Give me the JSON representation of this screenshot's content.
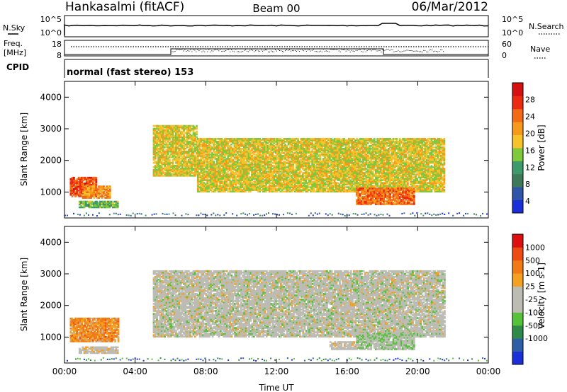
{
  "header": {
    "station": "Hankasalmi (fitACF)",
    "beam": "Beam 00",
    "date": "06/Mar/2012"
  },
  "top_panels": {
    "nsky_label": "N.Sky",
    "nsky_ticks": [
      "10^5",
      "10^0"
    ],
    "nsearch_label": "N.Search",
    "nsearch_ticks": [
      "10^5",
      "10^0"
    ],
    "freq_label_1": "Freq.",
    "freq_label_2": "[MHz]",
    "freq_ticks": [
      "18",
      "8"
    ],
    "nave_label": "Nave",
    "nave_ticks": [
      "60",
      "0"
    ],
    "cpid_label": "CPID",
    "cpid_text": "normal (fast stereo) 153"
  },
  "axes": {
    "ylabel": "Slant Range [km]",
    "yticks": [
      "1000",
      "2000",
      "3000",
      "4000"
    ],
    "xlabel": "Time UT",
    "xticks": [
      "00:00",
      "04:00",
      "08:00",
      "12:00",
      "16:00",
      "20:00",
      "00:00"
    ]
  },
  "colorbars": {
    "power": {
      "label": "Power [dB]",
      "ticks": [
        "4",
        "8",
        "12",
        "16",
        "20",
        "24",
        "28"
      ],
      "colors": [
        "#1a2fd8",
        "#2e55a8",
        "#3e7a5a",
        "#3e9a6a",
        "#7ec93c",
        "#f6c42a",
        "#f59a1c",
        "#f26a16",
        "#ec2a12",
        "#d41010"
      ]
    },
    "velocity": {
      "label": "Velocity [m s-1]",
      "ticks": [
        "1000",
        "500",
        "100",
        "25",
        "-25",
        "-100",
        "-500",
        "-1000"
      ],
      "colors": [
        "#1a2fd8",
        "#2e5fa6",
        "#2f8a4a",
        "#55c23a",
        "#bcbcb4",
        "#bcbcb4",
        "#f4a020",
        "#f27a16",
        "#ee4a14",
        "#dc1010"
      ]
    }
  },
  "chart_data": {
    "type": "heatmap",
    "title": "Hankasalmi (fitACF) Beam 00 06/Mar/2012",
    "xlabel": "Time UT",
    "ylabel": "Slant Range [km]",
    "x_range_hours": [
      0,
      24
    ],
    "y_range_km": [
      180,
      4500
    ],
    "panels": [
      {
        "name": "Power [dB]",
        "color_range": [
          0,
          30
        ],
        "regions": [
          {
            "t0": 0.3,
            "t1": 1.8,
            "r_lo": 850,
            "r_hi": 1450,
            "value": 24
          },
          {
            "t0": 1.0,
            "t1": 2.6,
            "r_lo": 800,
            "r_hi": 1200,
            "value": 20
          },
          {
            "t0": 0.8,
            "t1": 3.0,
            "r_lo": 500,
            "r_hi": 700,
            "value": 12
          },
          {
            "t0": 5.0,
            "t1": 7.5,
            "r_lo": 1500,
            "r_hi": 3100,
            "value": 16
          },
          {
            "t0": 7.5,
            "t1": 21.5,
            "r_lo": 1000,
            "r_hi": 2700,
            "value": 16
          },
          {
            "t0": 16.5,
            "t1": 19.8,
            "r_lo": 600,
            "r_hi": 1100,
            "value": 22
          }
        ]
      },
      {
        "name": "Velocity [m s-1]",
        "color_range": [
          -1000,
          1000
        ],
        "regions": [
          {
            "t0": 0.3,
            "t1": 3.0,
            "r_lo": 850,
            "r_hi": 1600,
            "value": 400
          },
          {
            "t0": 0.8,
            "t1": 3.0,
            "r_lo": 480,
            "r_hi": 700,
            "value": 80
          },
          {
            "t0": 5.0,
            "t1": 21.5,
            "r_lo": 1000,
            "r_hi": 3100,
            "value": 0
          },
          {
            "t0": 16.5,
            "t1": 19.8,
            "r_lo": 600,
            "r_hi": 1100,
            "value": -120
          },
          {
            "t0": 15.0,
            "t1": 16.5,
            "r_lo": 600,
            "r_hi": 850,
            "value": 90
          }
        ]
      }
    ]
  }
}
